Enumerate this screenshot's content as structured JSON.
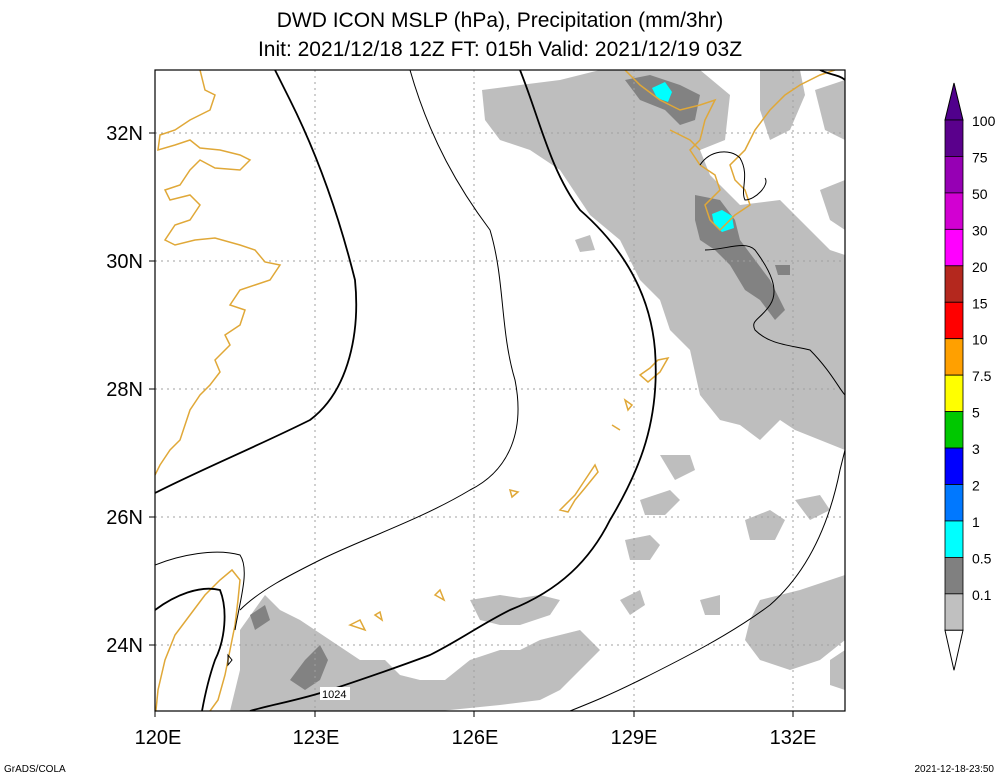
{
  "title": {
    "line1": "DWD ICON MSLP (hPa), Precipitation (mm/3hr)",
    "line2": "Init: 2021/12/18 12Z  FT: 015h  Valid: 2021/12/19 03Z"
  },
  "axes": {
    "lon_labels": [
      "120E",
      "123E",
      "126E",
      "129E",
      "132E"
    ],
    "lat_labels": [
      "32N",
      "30N",
      "28N",
      "26N",
      "24N"
    ]
  },
  "isobar_label": "1024",
  "colorbar": {
    "labels": [
      "100",
      "75",
      "50",
      "30",
      "20",
      "15",
      "10",
      "7.5",
      "5",
      "3",
      "2",
      "1",
      "0.5",
      "0.1"
    ],
    "colors": [
      "#5a008c",
      "#9600b4",
      "#d200d2",
      "#ff00ff",
      "#b4281e",
      "#ff0000",
      "#ffa000",
      "#ffff00",
      "#00c800",
      "#0000ff",
      "#0078ff",
      "#00ffff",
      "#808080",
      "#c0c0c0"
    ],
    "triangle_top_color": "#50008c"
  },
  "map_colors": {
    "coast": "#e0a838",
    "isobar": "#000000",
    "grid": "#a0a0a0",
    "precip_light": "#bebebe",
    "precip_mid": "#828282",
    "precip_heavy": "#00ffff"
  },
  "footer": {
    "left": "GrADS/COLA",
    "right": "2021-12-18-23:50"
  }
}
